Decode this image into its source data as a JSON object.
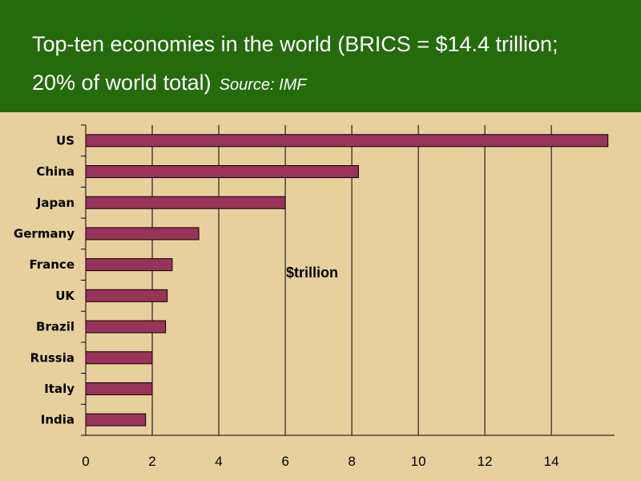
{
  "header": {
    "title_line1": "Top-ten economies in the world  (BRICS = $14.4 trillion;",
    "title_line2": "20% of world total)",
    "source": "Source: IMF",
    "bg_color": "#246b0c"
  },
  "chart_data": {
    "type": "bar",
    "orientation": "horizontal",
    "categories": [
      "US",
      "China",
      "Japan",
      "Germany",
      "France",
      "UK",
      "Brazil",
      "Russia",
      "Italy",
      "India"
    ],
    "values": [
      15.7,
      8.2,
      6.0,
      3.4,
      2.6,
      2.45,
      2.4,
      2.0,
      2.0,
      1.8
    ],
    "x_ticks": [
      0,
      2,
      4,
      6,
      8,
      10,
      12,
      14
    ],
    "xlim": [
      0,
      15.9
    ],
    "annotation": "$trillion",
    "grid": "vertical",
    "bar_color": "#99335c",
    "bg_color": "#e8d09c"
  }
}
